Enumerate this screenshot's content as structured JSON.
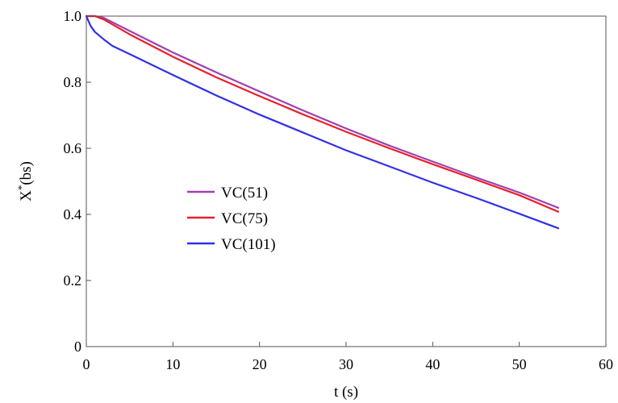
{
  "chart_data": {
    "type": "line",
    "xlabel": "t (s)",
    "ylabel": "X*(bs)",
    "ylabel_main": "X",
    "ylabel_sup": "*",
    "ylabel_rest": "(bs)",
    "xlim": [
      0,
      60
    ],
    "ylim": [
      0,
      1.0
    ],
    "xticks": [
      0,
      10,
      20,
      30,
      40,
      50,
      60
    ],
    "yticks": [
      0,
      0.2,
      0.4,
      0.6,
      0.8,
      1.0
    ],
    "xtick_labels": [
      "0",
      "10",
      "20",
      "30",
      "40",
      "50",
      "60"
    ],
    "ytick_labels": [
      "0",
      "0.2",
      "0.4",
      "0.6",
      "0.8",
      "1.0"
    ],
    "grid": false,
    "legend_position": "center-left",
    "series": [
      {
        "name": "VC(51)",
        "color": "#a040b0",
        "x": [
          0,
          1,
          2,
          5,
          10,
          15,
          20,
          25,
          30,
          35,
          40,
          45,
          50,
          54.5
        ],
        "y": [
          1.0,
          1.0,
          0.995,
          0.955,
          0.89,
          0.83,
          0.772,
          0.715,
          0.66,
          0.608,
          0.56,
          0.512,
          0.466,
          0.42
        ]
      },
      {
        "name": "VC(75)",
        "color": "#e8202a",
        "x": [
          0,
          1,
          2,
          5,
          10,
          15,
          20,
          25,
          30,
          35,
          40,
          45,
          50,
          54.5
        ],
        "y": [
          1.0,
          1.0,
          0.99,
          0.945,
          0.877,
          0.815,
          0.758,
          0.703,
          0.65,
          0.6,
          0.552,
          0.505,
          0.458,
          0.408
        ]
      },
      {
        "name": "VC(101)",
        "color": "#3030e8",
        "x": [
          0,
          0.5,
          1,
          2,
          3,
          5,
          10,
          15,
          20,
          25,
          30,
          35,
          40,
          45,
          50,
          54.5
        ],
        "y": [
          1.0,
          0.97,
          0.952,
          0.93,
          0.91,
          0.885,
          0.822,
          0.76,
          0.702,
          0.648,
          0.594,
          0.545,
          0.496,
          0.45,
          0.402,
          0.358
        ]
      }
    ]
  }
}
